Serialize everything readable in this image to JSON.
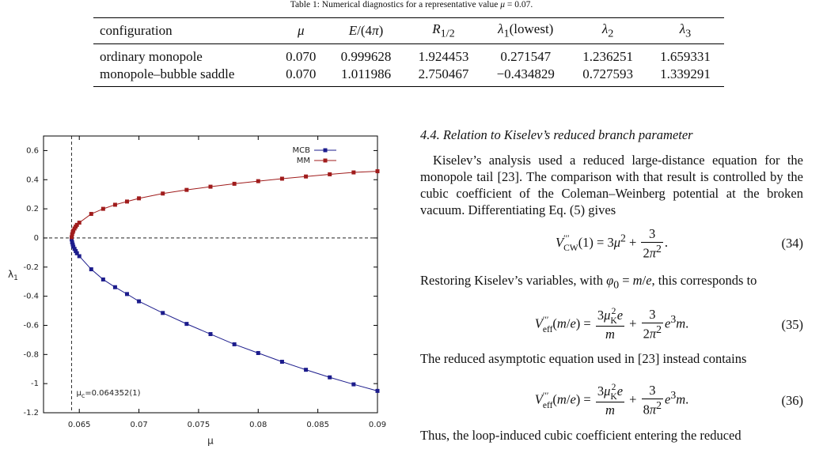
{
  "table": {
    "caption": [
      {
        "t": "Table 1:  Numerical diagnostics for a representative value "
      },
      {
        "m": "μ"
      },
      {
        "t": " = 0.07."
      }
    ],
    "headers": [
      [
        {
          "t": "configuration"
        }
      ],
      [
        {
          "m": "μ"
        }
      ],
      [
        {
          "m": "E"
        },
        {
          "t": "/(4"
        },
        {
          "m": "π"
        },
        {
          "t": ")"
        }
      ],
      [
        {
          "m": "R"
        },
        {
          "sub": "1/2"
        }
      ],
      [
        {
          "m": "λ"
        },
        {
          "sub": "1"
        },
        {
          "t": "(lowest)"
        }
      ],
      [
        {
          "m": "λ"
        },
        {
          "sub": "2"
        }
      ],
      [
        {
          "m": "λ"
        },
        {
          "sub": "3"
        }
      ]
    ],
    "rows": [
      [
        "ordinary monopole",
        "0.070",
        "0.999628",
        "1.924453",
        "0.271547",
        "1.236251",
        "1.659331"
      ],
      [
        "monopole–bubble saddle",
        "0.070",
        "1.011986",
        "2.750467",
        "−0.434829",
        "0.727593",
        "1.339291"
      ]
    ]
  },
  "chart_data": {
    "type": "line",
    "x_label": "μ",
    "y_label": [
      {
        "t": "λ"
      },
      {
        "sub": "1"
      }
    ],
    "x": [
      0.06436,
      0.0644,
      0.06445,
      0.0645,
      0.0646,
      0.0647,
      0.0648,
      0.065,
      0.066,
      0.067,
      0.068,
      0.069,
      0.07,
      0.072,
      0.074,
      0.076,
      0.078,
      0.08,
      0.082,
      0.084,
      0.086,
      0.088,
      0.09
    ],
    "series": [
      {
        "name": "MCB",
        "color": "#1c1c8c",
        "values": [
          -0.01,
          -0.03,
          -0.045,
          -0.06,
          -0.075,
          -0.09,
          -0.105,
          -0.125,
          -0.215,
          -0.285,
          -0.338,
          -0.385,
          -0.435,
          -0.515,
          -0.59,
          -0.66,
          -0.73,
          -0.79,
          -0.85,
          -0.905,
          -0.957,
          -1.005,
          -1.05
        ]
      },
      {
        "name": "MM",
        "color": "#a01c1c",
        "values": [
          0.005,
          0.025,
          0.04,
          0.05,
          0.065,
          0.078,
          0.09,
          0.105,
          0.165,
          0.2,
          0.228,
          0.25,
          0.272,
          0.305,
          0.33,
          0.352,
          0.372,
          0.39,
          0.407,
          0.422,
          0.437,
          0.45,
          0.458
        ]
      }
    ],
    "xlim": [
      0.062,
      0.09
    ],
    "ylim": [
      -1.2,
      0.7
    ],
    "xticks": [
      0.065,
      0.07,
      0.075,
      0.08,
      0.085,
      0.09
    ],
    "yticks": [
      0.6,
      0.4,
      0.2,
      0,
      -0.2,
      -0.4,
      -0.6,
      -0.8,
      -1,
      -1.2
    ],
    "vline": 0.064352,
    "hline": 0,
    "legend": "top-right",
    "annotation": [
      {
        "t": "μ"
      },
      {
        "sub": "c"
      },
      {
        "t": "=0.064352(1)"
      }
    ]
  },
  "section": {
    "heading": "4.4.  Relation to Kiselev’s reduced branch parameter",
    "paragraphs": [
      [
        {
          "t": "Kiselev’s analysis used a reduced large-distance equation for the monopole tail [23]. The comparison with that result is controlled by the cubic coefficient of the Coleman–Weinberg potential at the broken vacuum. Differentiating Eq. (5) gives"
        }
      ],
      [
        {
          "t": "Restoring Kiselev’s variables, with "
        },
        {
          "m": "φ"
        },
        {
          "sub": "0"
        },
        {
          "t": " = "
        },
        {
          "m": "m"
        },
        {
          "t": "/"
        },
        {
          "m": "e"
        },
        {
          "t": ", this corresponds to"
        }
      ],
      [
        {
          "t": "The reduced asymptotic equation used in  [23] instead contains"
        }
      ],
      [
        {
          "t": "Thus, the loop-induced cubic coefficient entering the reduced"
        }
      ]
    ],
    "equations": [
      {
        "parts": [
          {
            "m": "V"
          },
          {
            "sup": "′′′",
            "sub": "CW"
          },
          {
            "t": "(1) = 3"
          },
          {
            "m": "μ"
          },
          {
            "sup": "2"
          },
          {
            "t": " + "
          },
          {
            "num": [
              {
                "t": "3"
              }
            ],
            "den": [
              {
                "t": "2"
              },
              {
                "m": "π"
              },
              {
                "sup": "2"
              }
            ]
          },
          {
            "t": "."
          }
        ],
        "number": "(34)"
      },
      {
        "parts": [
          {
            "m": "V"
          },
          {
            "sup": "′′′",
            "sub": "eff"
          },
          {
            "t": "("
          },
          {
            "m": "m"
          },
          {
            "t": "/"
          },
          {
            "m": "e"
          },
          {
            "t": ") = "
          },
          {
            "num": [
              {
                "t": "3"
              },
              {
                "m": "μ"
              },
              {
                "sup": "2",
                "sub": "K"
              },
              {
                "m": "e"
              }
            ],
            "den": [
              {
                "m": "m"
              }
            ]
          },
          {
            "t": " + "
          },
          {
            "num": [
              {
                "t": "3"
              }
            ],
            "den": [
              {
                "t": "2"
              },
              {
                "m": "π"
              },
              {
                "sup": "2"
              }
            ]
          },
          {
            "m": "e"
          },
          {
            "sup": "3"
          },
          {
            "m": "m"
          },
          {
            "t": "."
          }
        ],
        "number": "(35)"
      },
      {
        "parts": [
          {
            "m": "V"
          },
          {
            "sup": "′′′",
            "sub": "eff"
          },
          {
            "t": "("
          },
          {
            "m": "m"
          },
          {
            "t": "/"
          },
          {
            "m": "e"
          },
          {
            "t": ") = "
          },
          {
            "num": [
              {
                "t": "3"
              },
              {
                "m": "μ"
              },
              {
                "sup": "2",
                "sub": "K"
              },
              {
                "m": "e"
              }
            ],
            "den": [
              {
                "m": "m"
              }
            ]
          },
          {
            "t": " + "
          },
          {
            "num": [
              {
                "t": "3"
              }
            ],
            "den": [
              {
                "t": "8"
              },
              {
                "m": "π"
              },
              {
                "sup": "2"
              }
            ]
          },
          {
            "m": "e"
          },
          {
            "sup": "3"
          },
          {
            "m": "m"
          },
          {
            "t": "."
          }
        ],
        "number": "(36)"
      }
    ]
  }
}
